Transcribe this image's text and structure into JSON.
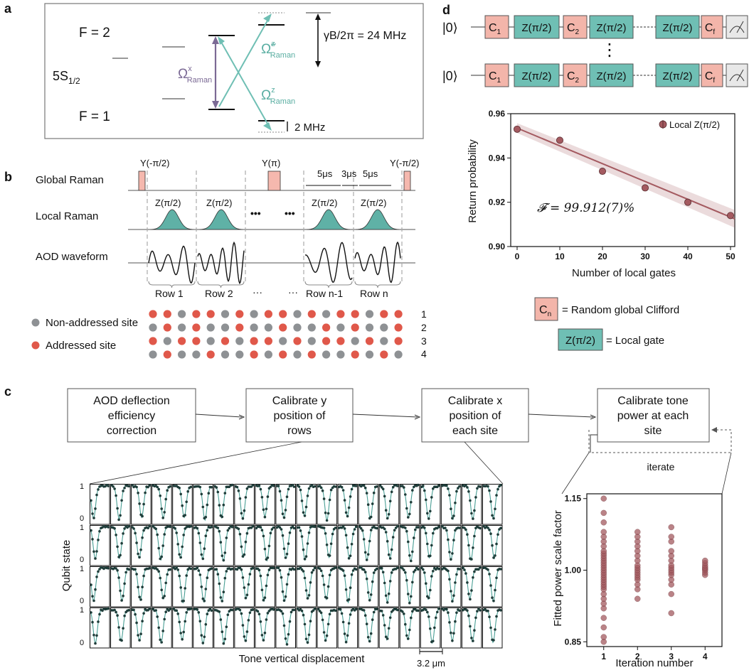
{
  "panels": {
    "a": "a",
    "b": "b",
    "c": "c",
    "d": "d"
  },
  "a": {
    "f2": "F = 2",
    "f1": "F = 1",
    "state_main": "5S",
    "state_sub": "1/2",
    "omega_x_main": "Ω",
    "omega_x_sup": "x",
    "omega_x_sub": "Raman",
    "omega_tilde_main": "Ω̃",
    "omega_tilde_sup": "z",
    "omega_tilde_sub": "Raman",
    "omega_z_main": "Ω",
    "omega_z_sup": "z",
    "omega_z_sub": "Raman",
    "gamma": "γB/2π = 24 MHz",
    "detuning": "2 MHz",
    "colors": {
      "purple": "#7b6a95",
      "teal": "#6fbfb4"
    }
  },
  "b": {
    "global_raman": "Global Raman",
    "local_raman": "Local Raman",
    "aod_waveform": "AOD waveform",
    "y_minus": "Y(-π/2)",
    "y_pi": "Y(π)",
    "y_minus_end": "Y(-π/2)",
    "t1": "5μs",
    "t2": "3μs",
    "t3": "5μs",
    "pulse_label": "Z(π/2)",
    "dots": "•••",
    "rows": [
      "Row 1",
      "Row 2",
      "···",
      "···",
      "Row n-1",
      "Row n"
    ],
    "legend_non": "Non-addressed site",
    "legend_addr": "Addressed site",
    "row_numbers": [
      "1",
      "2",
      "3",
      "4"
    ],
    "site_grid": [
      [
        1,
        1,
        0,
        1,
        1,
        0,
        1,
        0,
        1,
        1,
        0,
        1,
        0,
        1,
        1,
        0,
        1,
        1
      ],
      [
        0,
        1,
        0,
        1,
        0,
        0,
        1,
        0,
        0,
        1,
        0,
        0,
        1,
        0,
        1,
        0,
        0,
        1
      ],
      [
        1,
        0,
        1,
        1,
        0,
        1,
        0,
        1,
        1,
        0,
        1,
        0,
        1,
        1,
        0,
        1,
        0,
        1
      ],
      [
        0,
        1,
        0,
        0,
        1,
        0,
        0,
        1,
        0,
        1,
        0,
        1,
        0,
        0,
        1,
        0,
        1,
        0
      ]
    ],
    "colors": {
      "addressed": "#e0584a",
      "non_addressed": "#8e9194",
      "pulse": "#f5b8ae",
      "gauss": "#5fb1a6"
    }
  },
  "c": {
    "box1": [
      "AOD deflection",
      "efficiency",
      "correction"
    ],
    "box2": [
      "Calibrate y",
      "position of",
      "rows"
    ],
    "box3": [
      "Calibrate x",
      "position of",
      "each site"
    ],
    "box4": [
      "Calibrate tone",
      "power at each",
      "site"
    ],
    "iterate": "iterate",
    "grid_ylabel": "Qubit state",
    "grid_xlabel": "Tone vertical displacement",
    "scalebar": "3.2 μm",
    "tick_top": "1",
    "tick_bottom": "0",
    "scatter": {
      "type": "scatter",
      "ylabel": "Fitted power scale factor",
      "xlabel": "Iteration number",
      "x_ticks": [
        "1",
        "2",
        "3",
        "4"
      ],
      "y_ticks": [
        "0.85",
        "1.00",
        "1.15"
      ],
      "ylim": [
        0.84,
        1.16
      ],
      "series": [
        {
          "x": 1,
          "values": [
            0.85,
            0.86,
            0.88,
            0.9,
            0.92,
            0.93,
            0.94,
            0.95,
            0.96,
            0.965,
            0.97,
            0.975,
            0.98,
            0.985,
            0.99,
            0.995,
            1.0,
            1.005,
            1.01,
            1.015,
            1.02,
            1.025,
            1.03,
            1.035,
            1.04,
            1.05,
            1.06,
            1.07,
            1.08,
            1.1,
            1.12,
            1.15
          ]
        },
        {
          "x": 2,
          "values": [
            0.94,
            0.96,
            0.97,
            0.98,
            0.985,
            0.99,
            0.995,
            1.0,
            1.005,
            1.01,
            1.02,
            1.03,
            1.04,
            1.05,
            1.06,
            1.07,
            1.08
          ]
        },
        {
          "x": 3,
          "values": [
            0.91,
            0.95,
            0.97,
            0.98,
            0.99,
            0.995,
            1.0,
            1.005,
            1.01,
            1.02,
            1.03,
            1.04,
            1.06,
            1.07,
            1.09
          ]
        },
        {
          "x": 4,
          "values": [
            0.99,
            0.995,
            1.0,
            1.003,
            1.006,
            1.01,
            1.015,
            1.02
          ]
        }
      ],
      "color": "#a45a60"
    }
  },
  "d": {
    "ket": "|0⟩",
    "c1": "C",
    "c1_sub": "1",
    "c2": "C",
    "c2_sub": "2",
    "cf": "C",
    "cf_sub": "f",
    "zgate": "Z(π/2)",
    "vdots": "⋮",
    "legend_c": "C",
    "legend_c_sub": "n",
    "legend_c_text": "= Random global Clifford",
    "legend_z": "Z(π/2)",
    "legend_z_text": "= Local gate",
    "fidelity": "𝓕 = 99.912(7)%",
    "colors": {
      "clifford": "#f3b5aa",
      "zgate": "#6fbfb4",
      "meter": "#e8e8e8"
    }
  },
  "chart_data": {
    "type": "scatter",
    "title": "",
    "xlabel": "Number of local gates",
    "ylabel": "Return probability",
    "x": [
      0,
      10,
      20,
      30,
      40,
      50
    ],
    "values": [
      0.953,
      0.948,
      0.934,
      0.9265,
      0.92,
      0.914
    ],
    "xlim": [
      -1.5,
      51
    ],
    "ylim": [
      0.9,
      0.96
    ],
    "x_ticks": [
      "0",
      "10",
      "20",
      "30",
      "40",
      "50"
    ],
    "y_ticks": [
      "0.90",
      "0.92",
      "0.94",
      "0.96"
    ],
    "legend": "Local Z(π/2)",
    "legend_position": "top-right",
    "fit": {
      "x0": 0,
      "y0": 0.9535,
      "x1": 51,
      "y1": 0.9125
    },
    "color": "#a45a60"
  }
}
